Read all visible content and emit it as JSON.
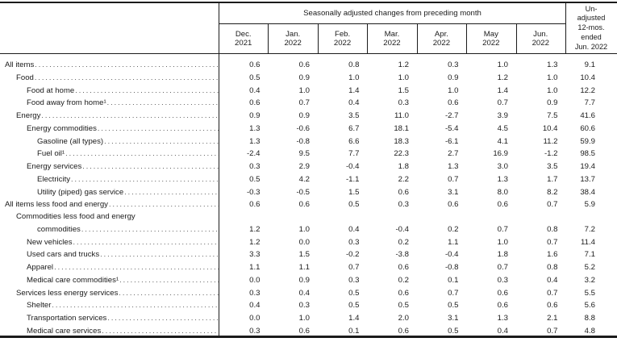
{
  "header": {
    "group_title": "Seasonally adjusted changes from preceding month",
    "months": [
      "Dec. 2021",
      "Jan. 2022",
      "Feb. 2022",
      "Mar. 2022",
      "Apr. 2022",
      "May 2022",
      "Jun. 2022"
    ],
    "unadjusted_lines": [
      "Un-",
      "adjusted",
      "12-mos.",
      "ended",
      "Jun. 2022"
    ]
  },
  "rows": [
    {
      "label": "All items",
      "indent": 0,
      "values": [
        "0.6",
        "0.6",
        "0.8",
        "1.2",
        "0.3",
        "1.0",
        "1.3",
        "9.1"
      ]
    },
    {
      "label": "Food",
      "indent": 1,
      "values": [
        "0.5",
        "0.9",
        "1.0",
        "1.0",
        "0.9",
        "1.2",
        "1.0",
        "10.4"
      ]
    },
    {
      "label": "Food at home",
      "indent": 2,
      "values": [
        "0.4",
        "1.0",
        "1.4",
        "1.5",
        "1.0",
        "1.4",
        "1.0",
        "12.2"
      ]
    },
    {
      "label": "Food away from home¹",
      "indent": 2,
      "values": [
        "0.6",
        "0.7",
        "0.4",
        "0.3",
        "0.6",
        "0.7",
        "0.9",
        "7.7"
      ]
    },
    {
      "label": "Energy",
      "indent": 1,
      "values": [
        "0.9",
        "0.9",
        "3.5",
        "11.0",
        "-2.7",
        "3.9",
        "7.5",
        "41.6"
      ]
    },
    {
      "label": "Energy commodities",
      "indent": 2,
      "values": [
        "1.3",
        "-0.6",
        "6.7",
        "18.1",
        "-5.4",
        "4.5",
        "10.4",
        "60.6"
      ]
    },
    {
      "label": "Gasoline (all types)",
      "indent": 3,
      "values": [
        "1.3",
        "-0.8",
        "6.6",
        "18.3",
        "-6.1",
        "4.1",
        "11.2",
        "59.9"
      ]
    },
    {
      "label": "Fuel oil¹",
      "indent": 3,
      "values": [
        "-2.4",
        "9.5",
        "7.7",
        "22.3",
        "2.7",
        "16.9",
        "-1.2",
        "98.5"
      ]
    },
    {
      "label": "Energy services",
      "indent": 2,
      "values": [
        "0.3",
        "2.9",
        "-0.4",
        "1.8",
        "1.3",
        "3.0",
        "3.5",
        "19.4"
      ]
    },
    {
      "label": "Electricity",
      "indent": 3,
      "values": [
        "0.5",
        "4.2",
        "-1.1",
        "2.2",
        "0.7",
        "1.3",
        "1.7",
        "13.7"
      ]
    },
    {
      "label": "Utility (piped) gas service",
      "indent": 3,
      "values": [
        "-0.3",
        "-0.5",
        "1.5",
        "0.6",
        "3.1",
        "8.0",
        "8.2",
        "38.4"
      ]
    },
    {
      "label": "All items less food and energy",
      "indent": 0,
      "values": [
        "0.6",
        "0.6",
        "0.5",
        "0.3",
        "0.6",
        "0.6",
        "0.7",
        "5.9"
      ]
    },
    {
      "label": "Commodities less food and energy",
      "label2": "commodities",
      "indent": 1,
      "values": [
        "1.2",
        "1.0",
        "0.4",
        "-0.4",
        "0.2",
        "0.7",
        "0.8",
        "7.2"
      ]
    },
    {
      "label": "New vehicles",
      "indent": 2,
      "values": [
        "1.2",
        "0.0",
        "0.3",
        "0.2",
        "1.1",
        "1.0",
        "0.7",
        "11.4"
      ]
    },
    {
      "label": "Used cars and trucks",
      "indent": 2,
      "values": [
        "3.3",
        "1.5",
        "-0.2",
        "-3.8",
        "-0.4",
        "1.8",
        "1.6",
        "7.1"
      ]
    },
    {
      "label": "Apparel",
      "indent": 2,
      "values": [
        "1.1",
        "1.1",
        "0.7",
        "0.6",
        "-0.8",
        "0.7",
        "0.8",
        "5.2"
      ]
    },
    {
      "label": "Medical care commodities¹",
      "indent": 2,
      "values": [
        "0.0",
        "0.9",
        "0.3",
        "0.2",
        "0.1",
        "0.3",
        "0.4",
        "3.2"
      ]
    },
    {
      "label": "Services less energy services",
      "indent": 1,
      "values": [
        "0.3",
        "0.4",
        "0.5",
        "0.6",
        "0.7",
        "0.6",
        "0.7",
        "5.5"
      ]
    },
    {
      "label": "Shelter",
      "indent": 2,
      "values": [
        "0.4",
        "0.3",
        "0.5",
        "0.5",
        "0.5",
        "0.6",
        "0.6",
        "5.6"
      ]
    },
    {
      "label": "Transportation services",
      "indent": 2,
      "values": [
        "0.0",
        "1.0",
        "1.4",
        "2.0",
        "3.1",
        "1.3",
        "2.1",
        "8.8"
      ]
    },
    {
      "label": "Medical care services",
      "indent": 2,
      "values": [
        "0.3",
        "0.6",
        "0.1",
        "0.6",
        "0.5",
        "0.4",
        "0.7",
        "4.8"
      ]
    }
  ]
}
